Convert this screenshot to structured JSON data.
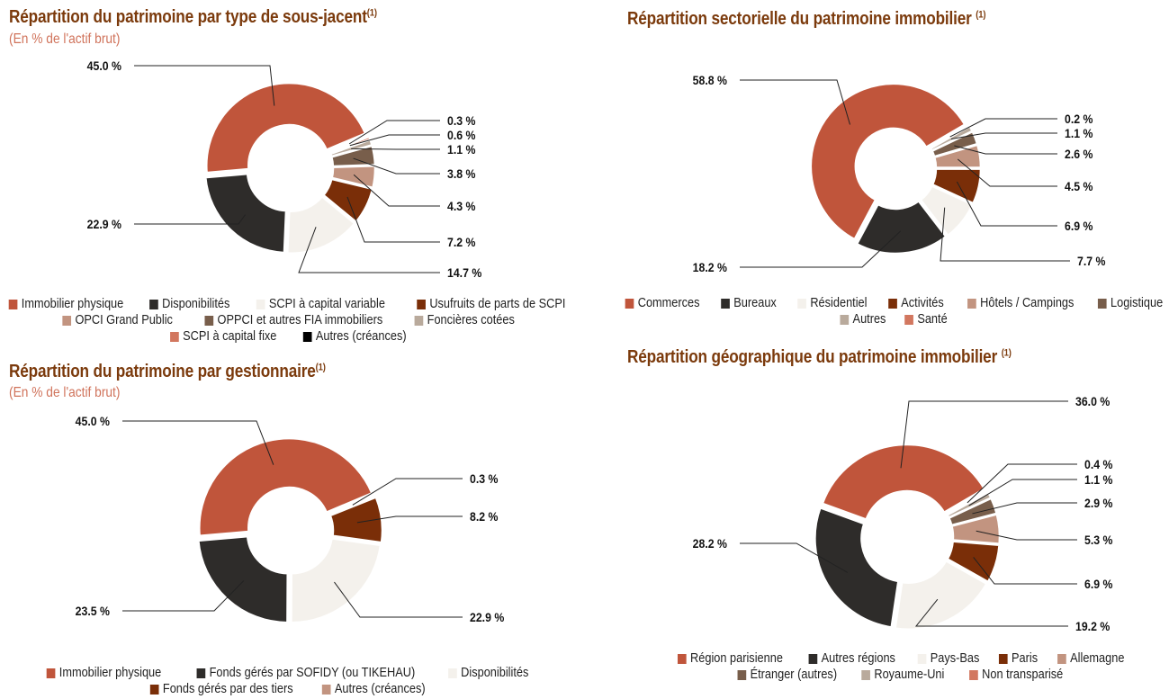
{
  "chart_data": [
    {
      "type": "pie",
      "title": "Répartition du patrimoine par type de sous-jacent",
      "title_note": "(1)",
      "subtitle": "(En % de l'actif brut)",
      "unit": "%",
      "slices": [
        {
          "label": "Immobilier physique",
          "value": 45.0,
          "color": "#c0553b"
        },
        {
          "label": "Disponibilités",
          "value": 22.9,
          "color": "#2e2c2a"
        },
        {
          "label": "SCPI à capital variable",
          "value": 14.7,
          "color": "#f4f1ec"
        },
        {
          "label": "Usufruits de parts de SCPI",
          "value": 7.2,
          "color": "#7a2e08"
        },
        {
          "label": "OPCI Grand Public",
          "value": 4.3,
          "color": "#c29480"
        },
        {
          "label": "OPPCI et autres FIA immobiliers",
          "value": 3.8,
          "color": "#785e4b"
        },
        {
          "label": "Foncières cotées",
          "value": 1.1,
          "color": "#b9aa9c"
        },
        {
          "label": "SCPI à capital fixe",
          "value": 0.6,
          "color": "#d2775f"
        },
        {
          "label": "Autres (créances)",
          "value": 0.3,
          "color": "#000000"
        }
      ]
    },
    {
      "type": "pie",
      "title": "Répartition sectorielle du patrimoine immobilier",
      "title_note": "(1)",
      "unit": "%",
      "slices": [
        {
          "label": "Commerces",
          "value": 58.8,
          "color": "#c0553b"
        },
        {
          "label": "Bureaux",
          "value": 18.2,
          "color": "#2e2c2a"
        },
        {
          "label": "Résidentiel",
          "value": 7.7,
          "color": "#f4f1ec"
        },
        {
          "label": "Activités",
          "value": 6.9,
          "color": "#7a2e08"
        },
        {
          "label": "Hôtels / Campings",
          "value": 4.5,
          "color": "#c29480"
        },
        {
          "label": "Logistique",
          "value": 2.6,
          "color": "#785e4b"
        },
        {
          "label": "Autres",
          "value": 1.1,
          "color": "#b9aa9c"
        },
        {
          "label": "Santé",
          "value": 0.2,
          "color": "#d2775f"
        }
      ]
    },
    {
      "type": "pie",
      "title": "Répartition du patrimoine par gestionnaire",
      "title_note": "(1)",
      "subtitle": "(En % de l'actif brut)",
      "unit": "%",
      "slices": [
        {
          "label": "Immobilier physique",
          "value": 45.0,
          "color": "#c0553b"
        },
        {
          "label": "Fonds gérés par SOFIDY (ou TIKEHAU)",
          "value": 23.5,
          "color": "#2e2c2a"
        },
        {
          "label": "Disponibilités",
          "value": 22.9,
          "color": "#f4f1ec"
        },
        {
          "label": "Fonds gérés par des tiers",
          "value": 8.2,
          "color": "#7a2e08"
        },
        {
          "label": "Autres (créances)",
          "value": 0.3,
          "color": "#c29480"
        }
      ]
    },
    {
      "type": "pie",
      "title": "Répartition géographique du patrimoine immobilier",
      "title_note": "(1)",
      "unit": "%",
      "slices": [
        {
          "label": "Région parisienne",
          "value": 36.0,
          "color": "#c0553b"
        },
        {
          "label": "Autres régions",
          "value": 28.2,
          "color": "#2e2c2a"
        },
        {
          "label": "Pays-Bas",
          "value": 19.2,
          "color": "#f4f1ec"
        },
        {
          "label": "Paris",
          "value": 6.9,
          "color": "#7a2e08"
        },
        {
          "label": "Allemagne",
          "value": 5.3,
          "color": "#c29480"
        },
        {
          "label": "Étranger (autres)",
          "value": 2.9,
          "color": "#785e4b"
        },
        {
          "label": "Royaume-Uni",
          "value": 1.1,
          "color": "#b9aa9c"
        },
        {
          "label": "Non transparisé",
          "value": 0.4,
          "color": "#d2775f"
        }
      ]
    }
  ]
}
